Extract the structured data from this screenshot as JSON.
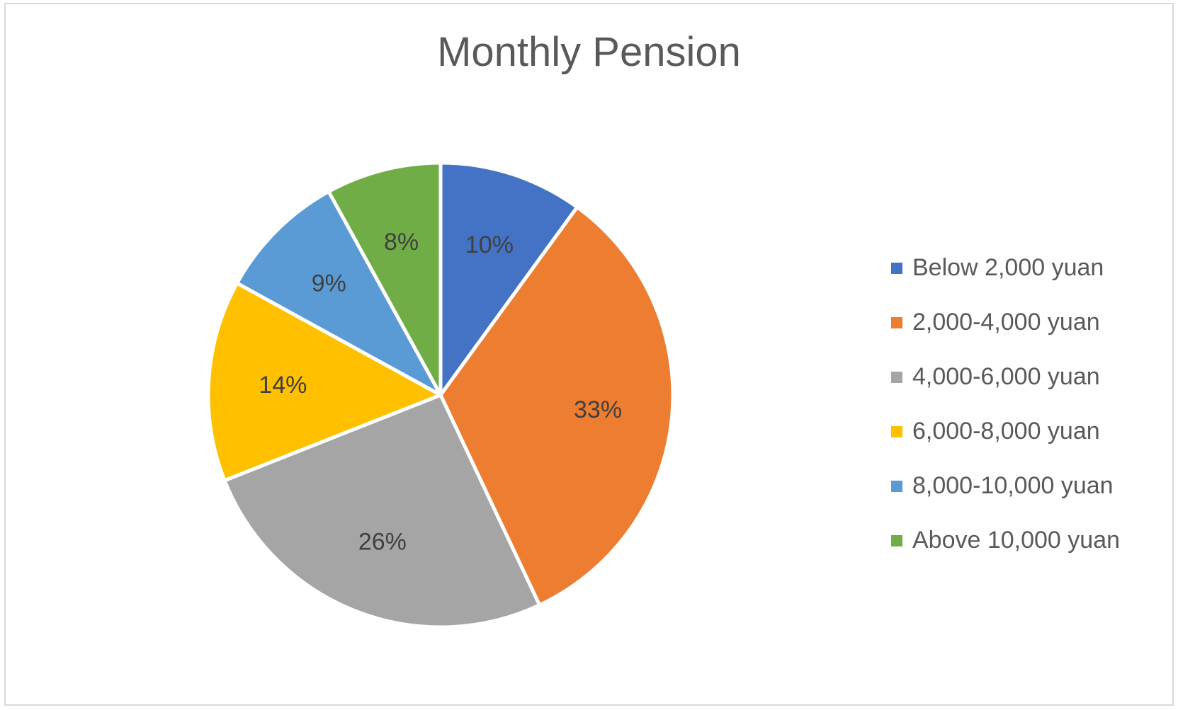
{
  "chart_data": {
    "type": "pie",
    "title": "Monthly Pension",
    "categories": [
      "Below 2,000 yuan",
      "2,000-4,000 yuan",
      "4,000-6,000 yuan",
      "6,000-8,000 yuan",
      "8,000-10,000 yuan",
      "Above 10,000 yuan"
    ],
    "values": [
      10,
      33,
      26,
      14,
      9,
      8
    ],
    "labels": [
      "10%",
      "33%",
      "26%",
      "14%",
      "9%",
      "8%"
    ],
    "colors": [
      "#4472C4",
      "#ED7D31",
      "#A5A5A5",
      "#FFC000",
      "#5B9BD5",
      "#70AD47"
    ],
    "legend_position": "right"
  }
}
